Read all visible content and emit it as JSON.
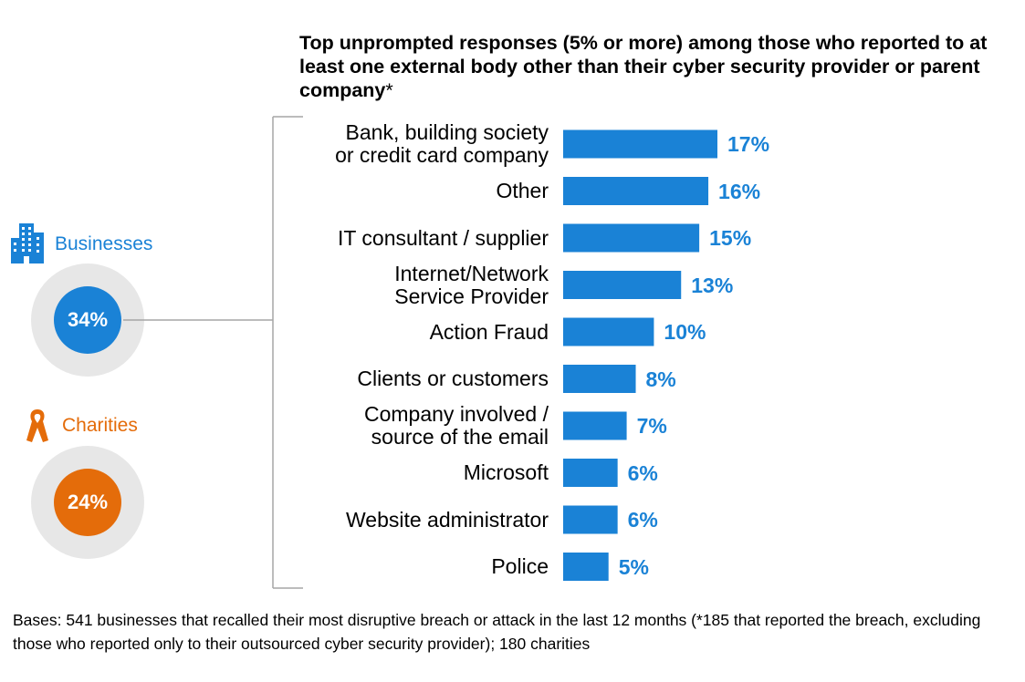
{
  "title": "Top unprompted responses (5% or more) among those who reported to at least one external body other than their cyber security provider or parent company",
  "title_suffix": "*",
  "groups": [
    {
      "name": "Businesses",
      "value": "34%",
      "color": "#1a82d6",
      "icon": "office-buildings-icon"
    },
    {
      "name": "Charities",
      "value": "24%",
      "color": "#e46c0a",
      "icon": "awareness-ribbon-icon"
    }
  ],
  "chart_data": {
    "type": "bar",
    "orientation": "horizontal",
    "categories": [
      "Bank, building society\nor credit card company",
      "Other",
      "IT consultant / supplier",
      "Internet/Network\nService Provider",
      "Action Fraud",
      "Clients or customers",
      "Company involved /\nsource of the email",
      "Microsoft",
      "Website administrator",
      "Police"
    ],
    "values": [
      17,
      16,
      15,
      13,
      10,
      8,
      7,
      6,
      6,
      5
    ],
    "value_labels": [
      "17%",
      "16%",
      "15%",
      "13%",
      "10%",
      "8%",
      "7%",
      "6%",
      "6%",
      "5%"
    ],
    "bar_color": "#1a82d6",
    "label_color": "#1a82d6",
    "xlim": [
      0,
      17
    ]
  },
  "footnote": "Bases: 541 businesses that recalled their most disruptive breach or attack in the last 12 months (*185 that reported the breach, excluding those who reported only to their outsourced cyber security provider); 180 charities"
}
